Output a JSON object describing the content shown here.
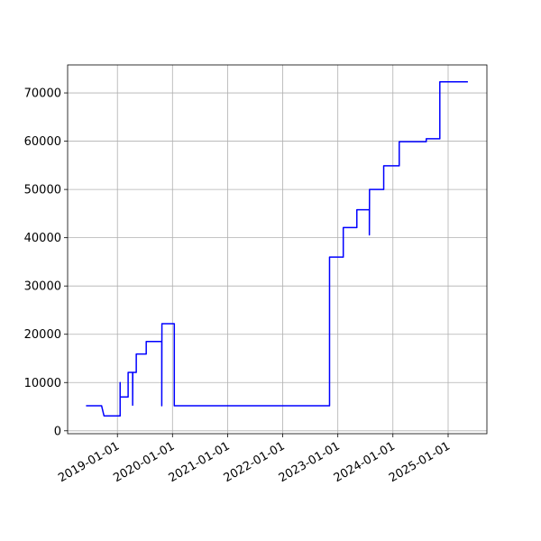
{
  "chart_data": {
    "type": "line",
    "x": [
      "2018-06-07",
      "2018-09-18",
      "2018-10-04",
      "2019-01-19",
      "2019-01-19",
      "2019-01-19",
      "2019-03-13",
      "2019-03-13",
      "2019-04-12",
      "2019-04-12",
      "2019-04-13",
      "2019-05-06",
      "2019-05-06",
      "2019-07-11",
      "2019-07-11",
      "2019-10-22",
      "2019-10-22",
      "2019-10-23",
      "2020-01-13",
      "2020-01-13",
      "2022-11-07",
      "2022-11-07",
      "2023-02-06",
      "2023-02-06",
      "2023-05-07",
      "2023-05-07",
      "2023-07-29",
      "2023-07-29",
      "2023-07-30",
      "2023-11-01",
      "2023-11-01",
      "2024-02-12",
      "2024-02-12",
      "2024-08-09",
      "2024-08-09",
      "2024-11-07",
      "2024-11-07",
      "2025-05-12"
    ],
    "values": [
      5200,
      5200,
      3100,
      3100,
      10000,
      7000,
      7000,
      12100,
      12100,
      5300,
      12100,
      12100,
      15900,
      15900,
      18500,
      18500,
      5200,
      22200,
      22200,
      5200,
      5200,
      36000,
      36000,
      42100,
      42100,
      45800,
      45800,
      40600,
      50000,
      50000,
      54900,
      54900,
      59900,
      59900,
      60500,
      60500,
      72300,
      72300
    ],
    "color": "#0000ff",
    "xlim": [
      "2018-02-05",
      "2025-09-15"
    ],
    "xticks": [
      "2019-01-01",
      "2020-01-01",
      "2021-01-01",
      "2022-01-01",
      "2023-01-01",
      "2024-01-01",
      "2025-01-01"
    ],
    "ylim": [
      -600,
      75800
    ],
    "yticks": [
      0,
      10000,
      20000,
      30000,
      40000,
      50000,
      60000,
      70000
    ],
    "grid": true
  }
}
